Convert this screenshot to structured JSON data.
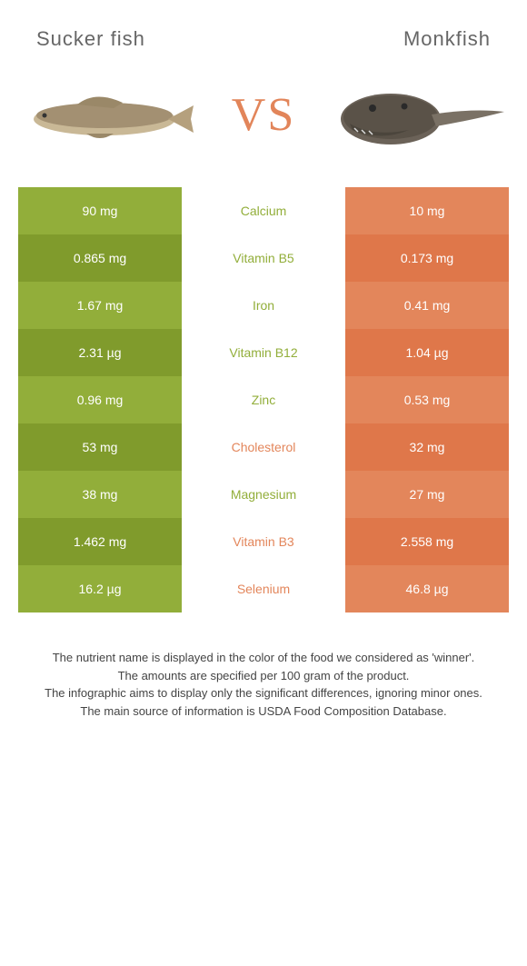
{
  "header": {
    "left_title": "Sucker fish",
    "right_title": "Monkfish",
    "vs": "VS"
  },
  "colors": {
    "left_pair": [
      "#92ae3a",
      "#809b2c"
    ],
    "right_pair": [
      "#e3865b",
      "#df774a"
    ],
    "nutrient_winner_left": "#92ae3a",
    "nutrient_winner_right": "#e3865b"
  },
  "rows": [
    {
      "left": "90 mg",
      "nutrient": "Calcium",
      "right": "10 mg",
      "winner": "left"
    },
    {
      "left": "0.865 mg",
      "nutrient": "Vitamin B5",
      "right": "0.173 mg",
      "winner": "left"
    },
    {
      "left": "1.67 mg",
      "nutrient": "Iron",
      "right": "0.41 mg",
      "winner": "left"
    },
    {
      "left": "2.31 µg",
      "nutrient": "Vitamin B12",
      "right": "1.04 µg",
      "winner": "left"
    },
    {
      "left": "0.96 mg",
      "nutrient": "Zinc",
      "right": "0.53 mg",
      "winner": "left"
    },
    {
      "left": "53 mg",
      "nutrient": "Cholesterol",
      "right": "32 mg",
      "winner": "right"
    },
    {
      "left": "38 mg",
      "nutrient": "Magnesium",
      "right": "27 mg",
      "winner": "left"
    },
    {
      "left": "1.462 mg",
      "nutrient": "Vitamin B3",
      "right": "2.558 mg",
      "winner": "right"
    },
    {
      "left": "16.2 µg",
      "nutrient": "Selenium",
      "right": "46.8 µg",
      "winner": "right"
    }
  ],
  "footer": {
    "line1": "The nutrient name is displayed in the color of the food we considered as 'winner'.",
    "line2": "The amounts are specified per 100 gram of the product.",
    "line3": "The infographic aims to display only the significant differences, ignoring minor ones.",
    "line4": "The main source of information is USDA Food Composition Database."
  }
}
